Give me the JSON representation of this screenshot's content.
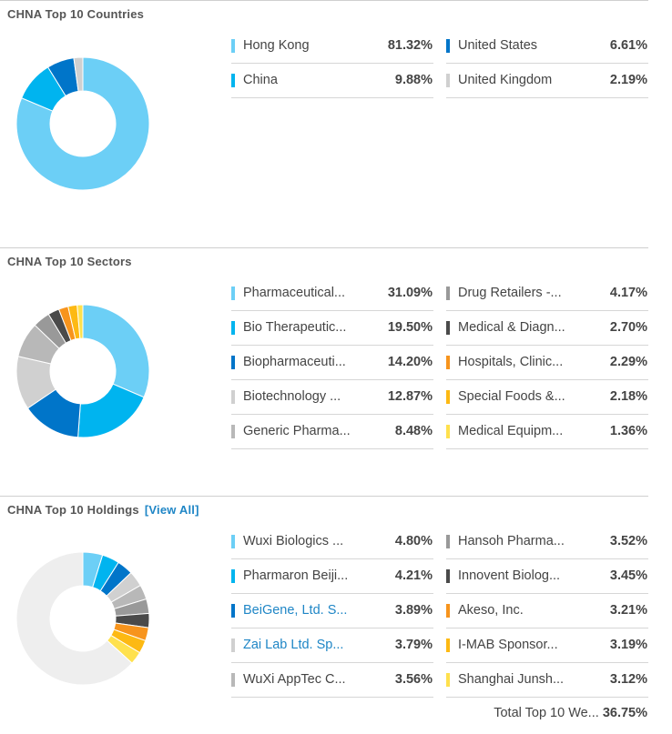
{
  "countries": {
    "title": "CHNA Top 10 Countries",
    "items": [
      {
        "label": "Hong Kong",
        "value": "81.32%"
      },
      {
        "label": "China",
        "value": "9.88%"
      },
      {
        "label": "United States",
        "value": "6.61%"
      },
      {
        "label": "United Kingdom",
        "value": "2.19%"
      }
    ]
  },
  "sectors": {
    "title": "CHNA Top 10 Sectors",
    "items": [
      {
        "label": "Pharmaceutical...",
        "value": "31.09%"
      },
      {
        "label": "Bio Therapeutic...",
        "value": "19.50%"
      },
      {
        "label": "Biopharmaceuti...",
        "value": "14.20%"
      },
      {
        "label": "Biotechnology ...",
        "value": "12.87%"
      },
      {
        "label": "Generic Pharma...",
        "value": "8.48%"
      },
      {
        "label": "Drug Retailers -...",
        "value": "4.17%"
      },
      {
        "label": "Medical & Diagn...",
        "value": "2.70%"
      },
      {
        "label": "Hospitals, Clinic...",
        "value": "2.29%"
      },
      {
        "label": "Special Foods &...",
        "value": "2.18%"
      },
      {
        "label": "Medical Equipm...",
        "value": "1.36%"
      }
    ]
  },
  "holdings": {
    "title": "CHNA Top 10 Holdings",
    "view_all": "[View All]",
    "items": [
      {
        "label": "Wuxi Biologics ...",
        "value": "4.80%"
      },
      {
        "label": "Pharmaron Beiji...",
        "value": "4.21%"
      },
      {
        "label": "BeiGene, Ltd. S...",
        "value": "3.89%"
      },
      {
        "label": "Zai Lab Ltd. Sp...",
        "value": "3.79%"
      },
      {
        "label": "WuXi AppTec C...",
        "value": "3.56%"
      },
      {
        "label": "Hansoh Pharma...",
        "value": "3.52%"
      },
      {
        "label": "Innovent Biolog...",
        "value": "3.45%"
      },
      {
        "label": "Akeso, Inc.",
        "value": "3.21%"
      },
      {
        "label": "I-MAB Sponsor...",
        "value": "3.19%"
      },
      {
        "label": "Shanghai Junsh...",
        "value": "3.12%"
      }
    ],
    "total_label": "Total Top 10 We...",
    "total_value": "36.75%"
  },
  "chart_data": [
    {
      "type": "pie",
      "title": "CHNA Top 10 Countries",
      "categories": [
        "Hong Kong",
        "China",
        "United States",
        "United Kingdom"
      ],
      "values": [
        81.32,
        9.88,
        6.61,
        2.19
      ],
      "colors": [
        "#6ccff6",
        "#00b4ef",
        "#0075c9",
        "#d0d0d0"
      ]
    },
    {
      "type": "pie",
      "title": "CHNA Top 10 Sectors",
      "categories": [
        "Pharmaceutical...",
        "Bio Therapeutic...",
        "Biopharmaceuti...",
        "Biotechnology ...",
        "Generic Pharma...",
        "Drug Retailers -...",
        "Medical & Diagn...",
        "Hospitals, Clinic...",
        "Special Foods &...",
        "Medical Equipm..."
      ],
      "values": [
        31.09,
        19.5,
        14.2,
        12.87,
        8.48,
        4.17,
        2.7,
        2.29,
        2.18,
        1.36
      ],
      "colors": [
        "#6ccff6",
        "#00b4ef",
        "#0075c9",
        "#d0d0d0",
        "#b8b8b8",
        "#999999",
        "#4a4a4a",
        "#f7941d",
        "#fdb913",
        "#ffe14d"
      ]
    },
    {
      "type": "pie",
      "title": "CHNA Top 10 Holdings",
      "categories": [
        "Wuxi Biologics ...",
        "Pharmaron Beiji...",
        "BeiGene, Ltd. S...",
        "Zai Lab Ltd. Sp...",
        "WuXi AppTec C...",
        "Hansoh Pharma...",
        "Innovent Biolog...",
        "Akeso, Inc.",
        "I-MAB Sponsor...",
        "Shanghai Junsh...",
        "Other"
      ],
      "values": [
        4.8,
        4.21,
        3.89,
        3.79,
        3.56,
        3.52,
        3.45,
        3.21,
        3.19,
        3.12,
        63.25
      ],
      "colors": [
        "#6ccff6",
        "#00b4ef",
        "#0075c9",
        "#d0d0d0",
        "#b8b8b8",
        "#999999",
        "#4a4a4a",
        "#f7941d",
        "#fdb913",
        "#ffe14d",
        "#eeeeee"
      ]
    }
  ]
}
